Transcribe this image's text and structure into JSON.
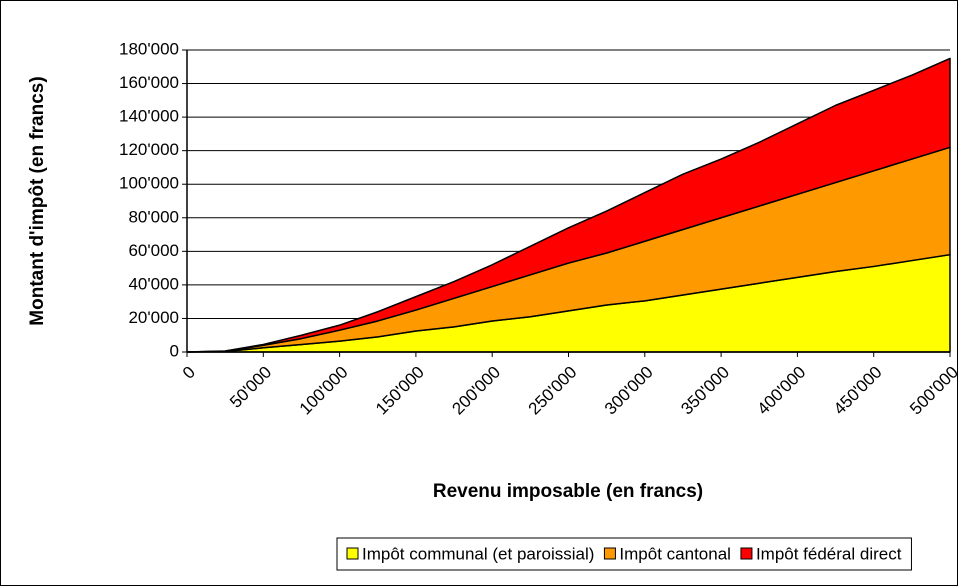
{
  "chart_data": {
    "type": "stacked_area",
    "x_label": "Revenu imposable (en francs)",
    "y_label": "Montant d'impôt (en francs)",
    "x": [
      0,
      25000,
      50000,
      75000,
      100000,
      125000,
      150000,
      175000,
      200000,
      225000,
      250000,
      275000,
      300000,
      325000,
      350000,
      375000,
      400000,
      425000,
      450000,
      475000,
      500000
    ],
    "series": [
      {
        "name": "Impôt communal (et paroissial)",
        "color": "#ffff00",
        "values": [
          0,
          300,
          2500,
          4500,
          6500,
          9000,
          12500,
          15000,
          18500,
          21000,
          24500,
          28000,
          30500,
          34000,
          37500,
          41000,
          44500,
          48000,
          51000,
          54500,
          58000
        ]
      },
      {
        "name": "Impôt cantonal",
        "color": "#ff9900",
        "values": [
          0,
          200,
          1500,
          3500,
          6500,
          9500,
          12500,
          17000,
          20500,
          25000,
          28500,
          31000,
          35500,
          39000,
          42500,
          46000,
          49500,
          53000,
          57000,
          60500,
          64000
        ]
      },
      {
        "name": "Impôt fédéral direct",
        "color": "#ff0000",
        "values": [
          0,
          100,
          500,
          2000,
          3000,
          5500,
          8000,
          10000,
          13000,
          17000,
          21000,
          25000,
          29000,
          33000,
          35000,
          38000,
          42000,
          46000,
          48000,
          50000,
          53000
        ]
      }
    ],
    "xlim": [
      0,
      500000
    ],
    "xticks": [
      0,
      {
        "value": 50000,
        "label": "50'000"
      },
      {
        "value": 100000,
        "label": "100'000"
      },
      {
        "value": 150000,
        "label": "150'000"
      },
      {
        "value": 200000,
        "label": "200'000"
      },
      {
        "value": 250000,
        "label": "250'000"
      },
      {
        "value": 300000,
        "label": "300'000"
      },
      {
        "value": 350000,
        "label": "350'000"
      },
      {
        "value": 400000,
        "label": "400'000"
      },
      {
        "value": 450000,
        "label": "450'000"
      },
      {
        "value": 500000,
        "label": "500'000"
      }
    ],
    "ylim": [
      0,
      180000
    ],
    "yticks": [
      0,
      {
        "value": 20000,
        "label": "20'000"
      },
      {
        "value": 40000,
        "label": "40'000"
      },
      {
        "value": 60000,
        "label": "60'000"
      },
      {
        "value": 80000,
        "label": "80'000"
      },
      {
        "value": 100000,
        "label": "100'000"
      },
      {
        "value": 120000,
        "label": "120'000"
      },
      {
        "value": 140000,
        "label": "140'000"
      },
      {
        "value": 160000,
        "label": "160'000"
      },
      {
        "value": 180000,
        "label": "180'000"
      }
    ],
    "grid": true,
    "legend": "bottom"
  }
}
